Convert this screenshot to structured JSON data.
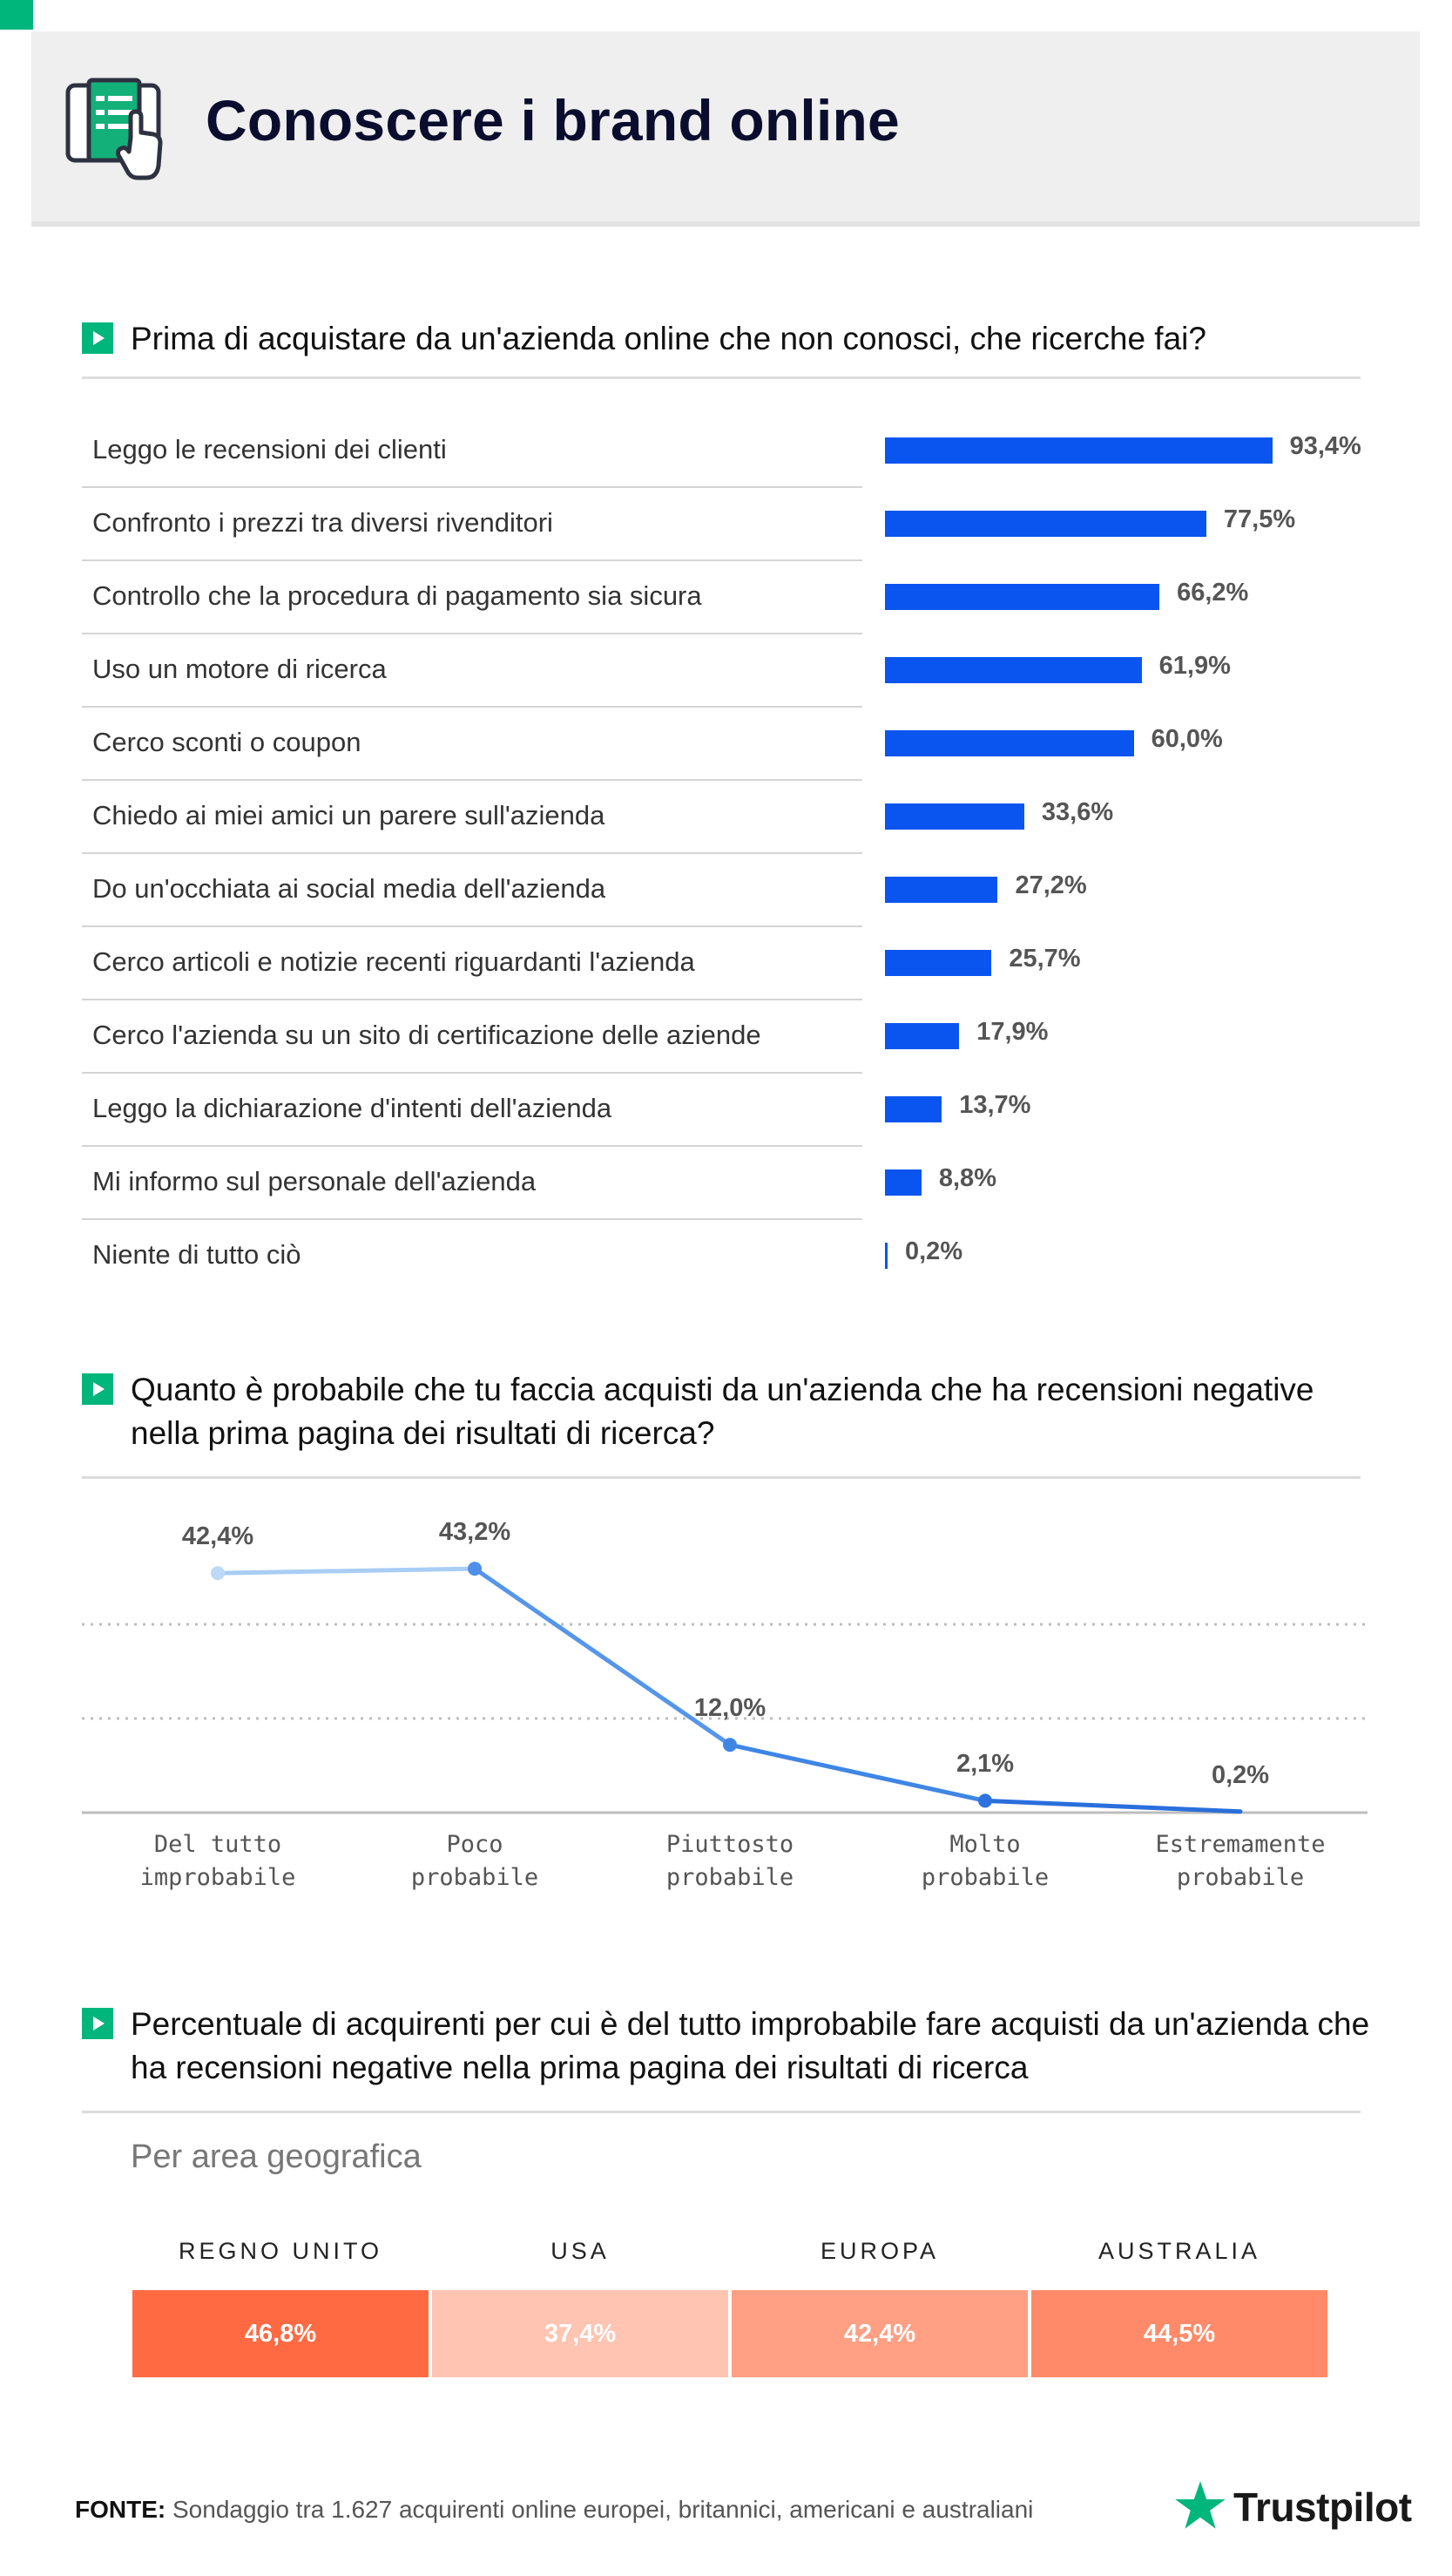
{
  "header": {
    "title": "Conoscere i brand online"
  },
  "colors": {
    "accent_green": "#00b67a",
    "bar_blue": "#0a55f0",
    "line_blue": "#5596ea",
    "title_navy": "#0b0d2e"
  },
  "q1": {
    "question": "Prima di acquistare da un'azienda online che non conosci, che ricerche fai?"
  },
  "q2": {
    "question": "Quanto è probabile che tu faccia acquisti da un'azienda che ha recensioni negative nella prima pagina dei risultati di ricerca?"
  },
  "q3": {
    "question": "Percentuale di acquirenti per cui è del tutto improbabile fare acquisti da un'azienda che ha recensioni negative nella prima pagina dei risultati di ricerca",
    "subtitle": "Per area geografica"
  },
  "chart_data": [
    {
      "type": "bar",
      "orientation": "horizontal",
      "categories": [
        "Leggo le recensioni dei clienti",
        "Confronto i prezzi tra diversi rivenditori",
        "Controllo che la procedura di pagamento sia sicura",
        "Uso un motore di ricerca",
        "Cerco sconti o coupon",
        "Chiedo ai miei amici un parere sull'azienda",
        "Do un'occhiata ai social media dell'azienda",
        "Cerco articoli e notizie recenti riguardanti l'azienda",
        "Cerco l'azienda su un sito di certificazione delle aziende",
        "Leggo la dichiarazione d'intenti dell'azienda",
        "Mi informo sul personale dell'azienda",
        "Niente di tutto ciò"
      ],
      "values": [
        93.4,
        77.5,
        66.2,
        61.9,
        60.0,
        33.6,
        27.2,
        25.7,
        17.9,
        13.7,
        8.8,
        0.2
      ],
      "value_labels": [
        "93,4%",
        "77,5%",
        "66,2%",
        "61,9%",
        "60,0%",
        "33,6%",
        "27,2%",
        "25,7%",
        "17,9%",
        "13,7%",
        "8,8%",
        "0,2%"
      ],
      "xlim": [
        0,
        100
      ],
      "grid": false
    },
    {
      "type": "line",
      "categories": [
        "Del tutto\nimprobabile",
        "Poco\nprobabile",
        "Piuttosto\nprobabile",
        "Molto\nprobabile",
        "Estremamente\nprobabile"
      ],
      "values": [
        42.4,
        43.2,
        12.0,
        2.1,
        0.2
      ],
      "value_labels": [
        "42,4%",
        "43,2%",
        "12,0%",
        "2,1%",
        "0,2%"
      ],
      "ylim": [
        0,
        50
      ],
      "grid": true
    },
    {
      "type": "table",
      "categories": [
        "REGNO UNITO",
        "USA",
        "EUROPA",
        "AUSTRALIA"
      ],
      "values": [
        46.8,
        37.4,
        42.4,
        44.5
      ],
      "value_labels": [
        "46,8%",
        "37,4%",
        "42,4%",
        "44,5%"
      ],
      "cell_colors": [
        "#ff6a43",
        "#ffc4b2",
        "#ff9f84",
        "#ff8a69"
      ]
    }
  ],
  "footer": {
    "source_label": "FONTE:",
    "source_text": " Sondaggio tra 1.627 acquirenti online europei, britannici, americani e australiani",
    "brand": "Trustpilot"
  }
}
